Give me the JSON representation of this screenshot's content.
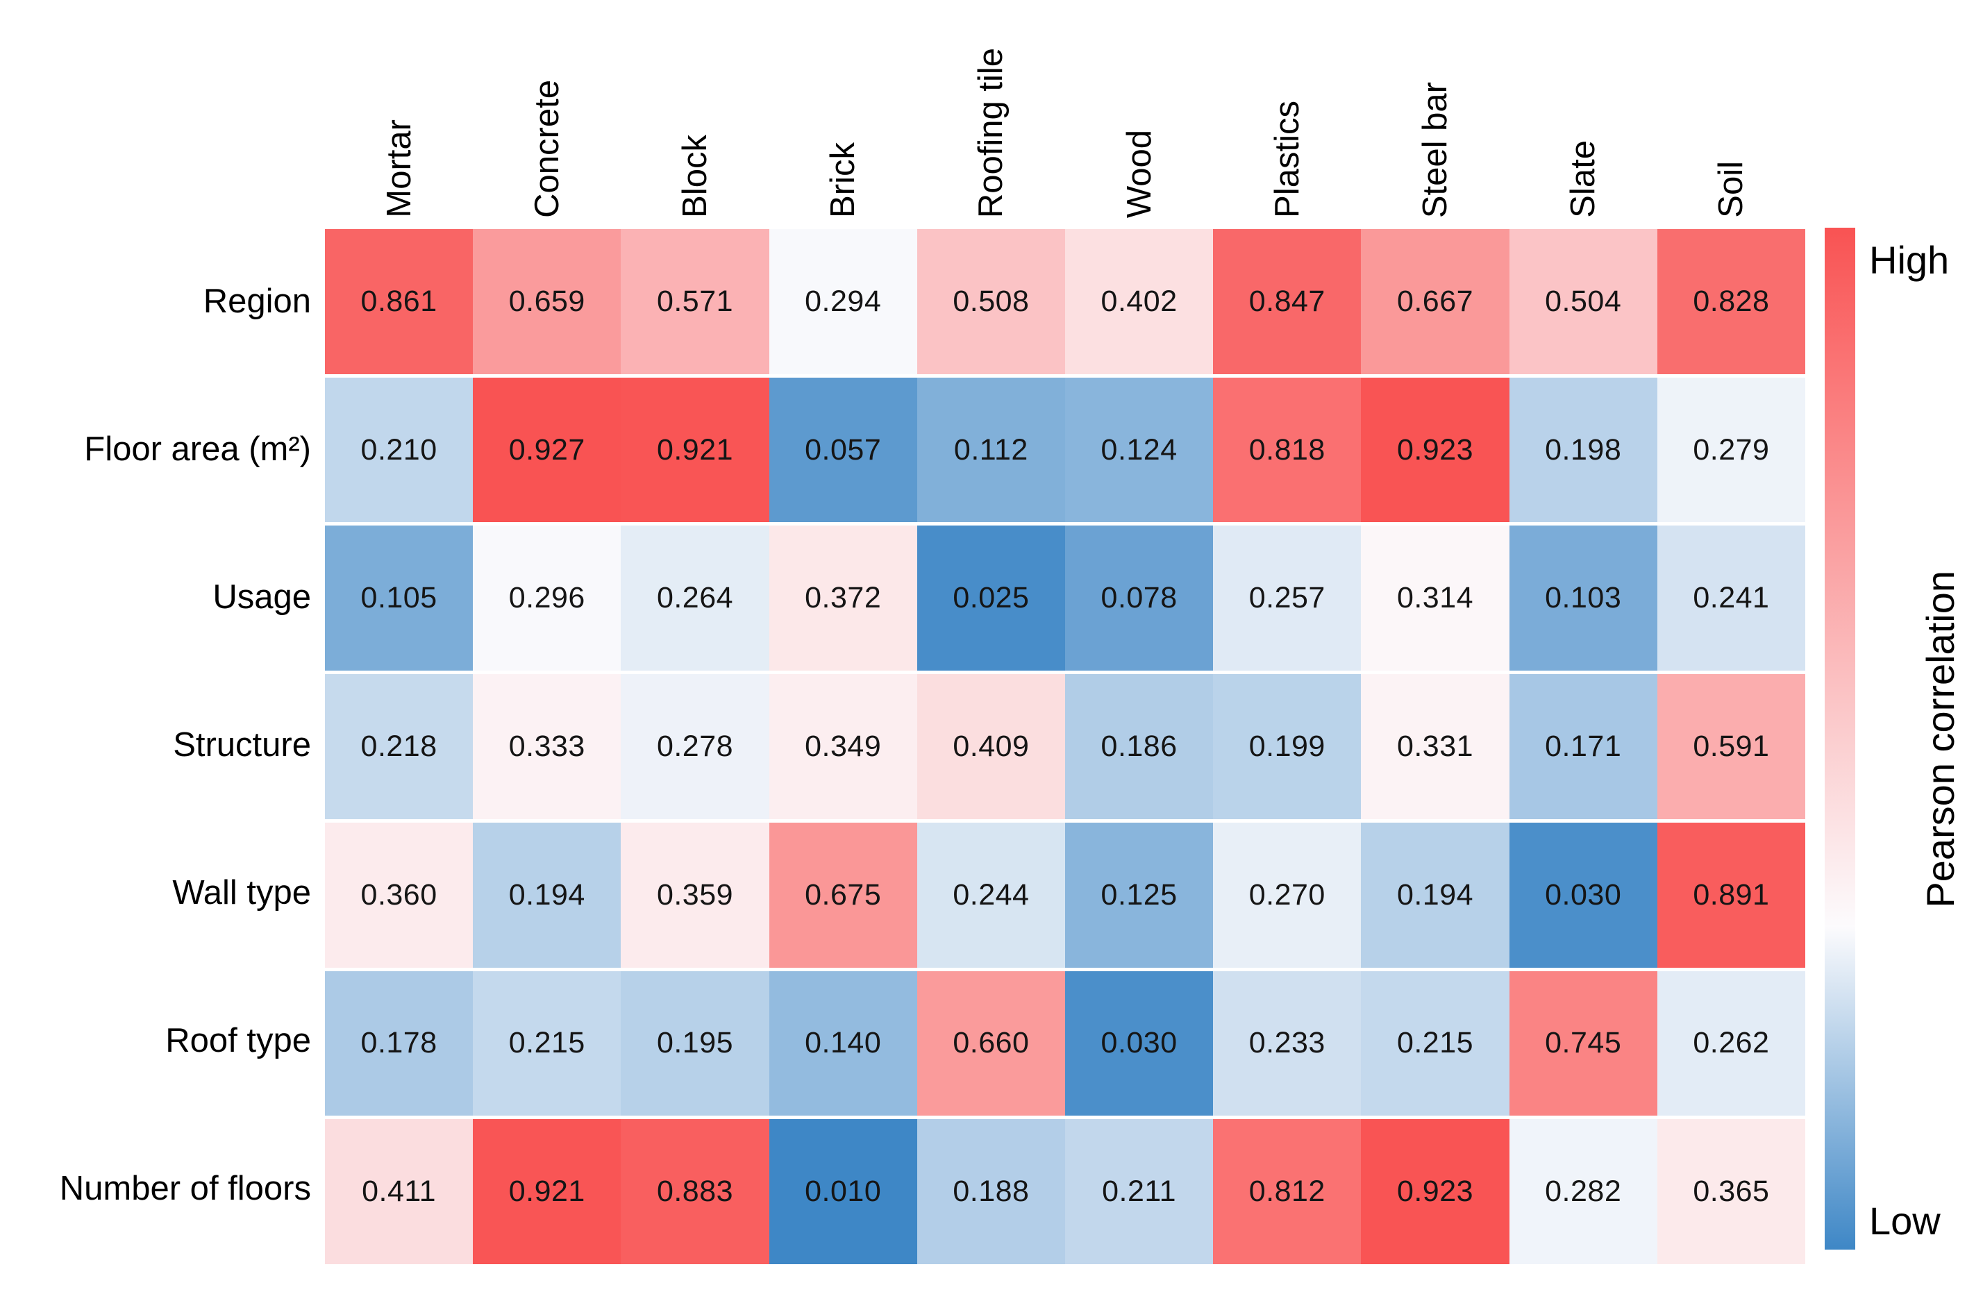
{
  "chart_data": {
    "type": "heatmap",
    "columns": [
      "Mortar",
      "Concrete",
      "Block",
      "Brick",
      "Roofing tile",
      "Wood",
      "Plastics",
      "Steel bar",
      "Slate",
      "Soil"
    ],
    "rows": [
      "Region",
      "Floor area (m²)",
      "Usage",
      "Structure",
      "Wall type",
      "Roof type",
      "Number of floors"
    ],
    "values": [
      [
        0.861,
        0.659,
        0.571,
        0.294,
        0.508,
        0.402,
        0.847,
        0.667,
        0.504,
        0.828
      ],
      [
        0.21,
        0.927,
        0.921,
        0.057,
        0.112,
        0.124,
        0.818,
        0.923,
        0.198,
        0.279
      ],
      [
        0.105,
        0.296,
        0.264,
        0.372,
        0.025,
        0.078,
        0.257,
        0.314,
        0.103,
        0.241
      ],
      [
        0.218,
        0.333,
        0.278,
        0.349,
        0.409,
        0.186,
        0.199,
        0.331,
        0.171,
        0.591
      ],
      [
        0.36,
        0.194,
        0.359,
        0.675,
        0.244,
        0.125,
        0.27,
        0.194,
        0.03,
        0.891
      ],
      [
        0.178,
        0.215,
        0.195,
        0.14,
        0.66,
        0.03,
        0.233,
        0.215,
        0.745,
        0.262
      ],
      [
        0.411,
        0.921,
        0.883,
        0.01,
        0.188,
        0.211,
        0.812,
        0.923,
        0.282,
        0.365
      ]
    ],
    "cell_value_decimals": 3,
    "colorbar": {
      "high_label": "High",
      "low_label": "Low",
      "label": "Pearson correlation",
      "position": "right"
    },
    "color_scale": {
      "vmin": 0.01,
      "vmax": 0.927,
      "midpoint": 0.3,
      "low_color": "#3e87c6",
      "mid_color": "#fcfbfd",
      "high_color": "#f95353"
    },
    "grid": false,
    "title": ""
  }
}
